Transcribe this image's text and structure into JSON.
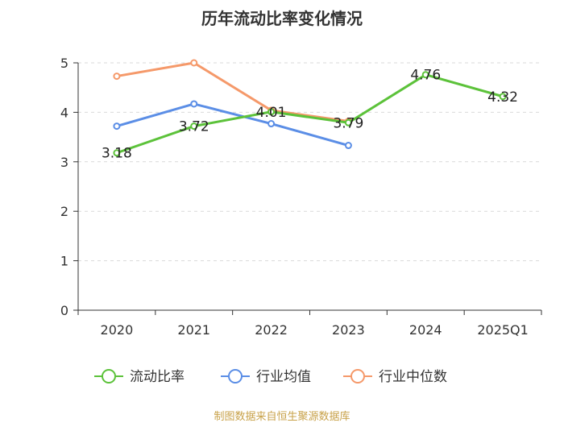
{
  "chart_data": {
    "type": "line",
    "title": "历年流动比率变化情况",
    "categories": [
      "2020",
      "2021",
      "2022",
      "2023",
      "2024",
      "2025Q1"
    ],
    "ylim": [
      0,
      5
    ],
    "yticks": [
      "0",
      "1",
      "2",
      "3",
      "4",
      "5"
    ],
    "grid": true,
    "legend_position": "bottom",
    "series": [
      {
        "name": "流动比率",
        "color": "#5cc23a",
        "values": [
          3.18,
          3.72,
          4.01,
          3.79,
          4.76,
          4.32
        ],
        "labels": [
          "3.18",
          "3.72",
          "4.01",
          "3.79",
          "4.76",
          "4.32"
        ]
      },
      {
        "name": "行业均值",
        "color": "#5b8ee6",
        "values": [
          3.72,
          4.17,
          3.77,
          3.33,
          null,
          null
        ]
      },
      {
        "name": "行业中位数",
        "color": "#f5996a",
        "values": [
          4.73,
          5.0,
          4.04,
          3.82,
          null,
          null
        ]
      }
    ],
    "source": "制图数据来自恒生聚源数据库"
  }
}
